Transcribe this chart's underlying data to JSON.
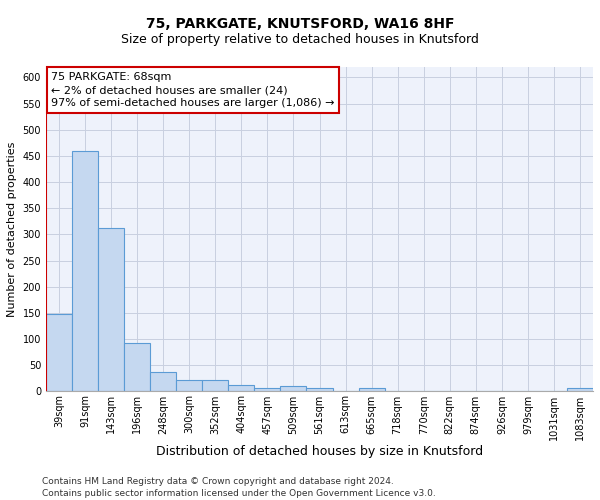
{
  "title1": "75, PARKGATE, KNUTSFORD, WA16 8HF",
  "title2": "Size of property relative to detached houses in Knutsford",
  "xlabel": "Distribution of detached houses by size in Knutsford",
  "ylabel": "Number of detached properties",
  "bar_values": [
    148,
    460,
    312,
    93,
    37,
    22,
    22,
    13,
    6,
    10,
    6,
    0,
    6,
    0,
    0,
    0,
    0,
    0,
    0,
    0,
    6
  ],
  "bar_labels": [
    "39sqm",
    "91sqm",
    "143sqm",
    "196sqm",
    "248sqm",
    "300sqm",
    "352sqm",
    "404sqm",
    "457sqm",
    "509sqm",
    "561sqm",
    "613sqm",
    "665sqm",
    "718sqm",
    "770sqm",
    "822sqm",
    "874sqm",
    "926sqm",
    "979sqm",
    "1031sqm",
    "1083sqm"
  ],
  "bar_color": "#c5d8f0",
  "bar_edgecolor": "#5b9bd5",
  "ylim": [
    0,
    620
  ],
  "yticks": [
    0,
    50,
    100,
    150,
    200,
    250,
    300,
    350,
    400,
    450,
    500,
    550,
    600
  ],
  "red_line_x": -0.5,
  "red_line_color": "#cc0000",
  "annotation_text": "75 PARKGATE: 68sqm\n← 2% of detached houses are smaller (24)\n97% of semi-detached houses are larger (1,086) →",
  "annotation_box_color": "#ffffff",
  "annotation_border_color": "#cc0000",
  "footnote1": "Contains HM Land Registry data © Crown copyright and database right 2024.",
  "footnote2": "Contains public sector information licensed under the Open Government Licence v3.0.",
  "bg_color": "#eef2fb",
  "grid_color": "#c8cfe0",
  "title_fontsize": 10,
  "subtitle_fontsize": 9,
  "annot_fontsize": 8,
  "ylabel_fontsize": 8,
  "xlabel_fontsize": 9,
  "tick_fontsize": 7,
  "footnote_fontsize": 6.5,
  "bar_width": 1.0
}
